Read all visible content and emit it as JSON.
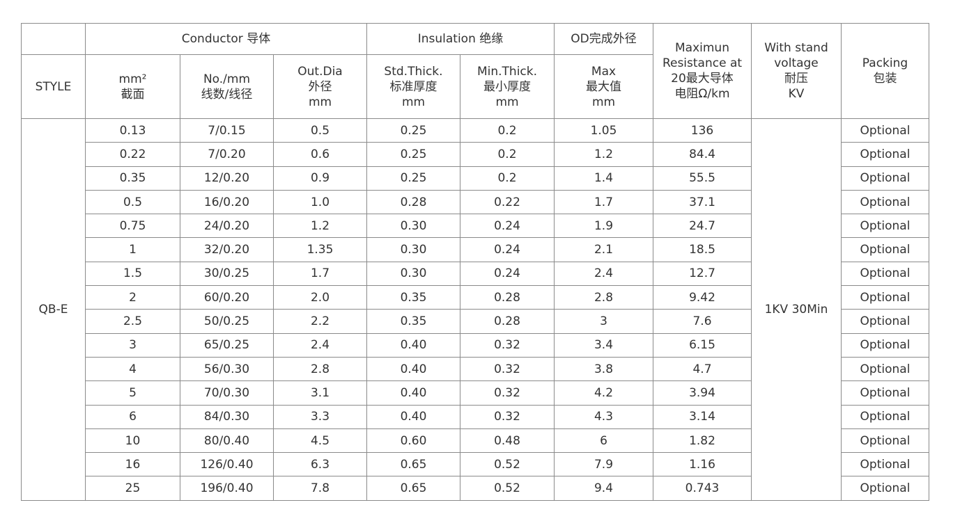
{
  "header": {
    "style": "STYLE",
    "conductor": "Conductor 导体",
    "insulation": "Insulation 绝缘",
    "od": "OD完成外径",
    "resistance": "Maximun\nResistance at\n20最大导体\n电阻Ω/km",
    "voltage": "With stand\nvoltage\n耐压\nKV",
    "packing": "Packing\n包装",
    "area": "mm²\n截面",
    "strands": "No./mm\n线数/线径",
    "outdia": "Out.Dia\n外径\nmm",
    "std_thick": "Std.Thick.\n标准厚度\nmm",
    "min_thick": "Min.Thick.\n最小厚度\nmm",
    "max": "Max\n最大值\nmm"
  },
  "style_value": "QB-E",
  "voltage_value": "1KV 30Min",
  "rows": [
    [
      "0.13",
      "7/0.15",
      "0.5",
      "0.25",
      "0.2",
      "1.05",
      "136",
      "Optional"
    ],
    [
      "0.22",
      "7/0.20",
      "0.6",
      "0.25",
      "0.2",
      "1.2",
      "84.4",
      "Optional"
    ],
    [
      "0.35",
      "12/0.20",
      "0.9",
      "0.25",
      "0.2",
      "1.4",
      "55.5",
      "Optional"
    ],
    [
      "0.5",
      "16/0.20",
      "1.0",
      "0.28",
      "0.22",
      "1.7",
      "37.1",
      "Optional"
    ],
    [
      "0.75",
      "24/0.20",
      "1.2",
      "0.30",
      "0.24",
      "1.9",
      "24.7",
      "Optional"
    ],
    [
      "1",
      "32/0.20",
      "1.35",
      "0.30",
      "0.24",
      "2.1",
      "18.5",
      "Optional"
    ],
    [
      "1.5",
      "30/0.25",
      "1.7",
      "0.30",
      "0.24",
      "2.4",
      "12.7",
      "Optional"
    ],
    [
      "2",
      "60/0.20",
      "2.0",
      "0.35",
      "0.28",
      "2.8",
      "9.42",
      "Optional"
    ],
    [
      "2.5",
      "50/0.25",
      "2.2",
      "0.35",
      "0.28",
      "3",
      "7.6",
      "Optional"
    ],
    [
      "3",
      "65/0.25",
      "2.4",
      "0.40",
      "0.32",
      "3.4",
      "6.15",
      "Optional"
    ],
    [
      "4",
      "56/0.30",
      "2.8",
      "0.40",
      "0.32",
      "3.8",
      "4.7",
      "Optional"
    ],
    [
      "5",
      "70/0.30",
      "3.1",
      "0.40",
      "0.32",
      "4.2",
      "3.94",
      "Optional"
    ],
    [
      "6",
      "84/0.30",
      "3.3",
      "0.40",
      "0.32",
      "4.3",
      "3.14",
      "Optional"
    ],
    [
      "10",
      "80/0.40",
      "4.5",
      "0.60",
      "0.48",
      "6",
      "1.82",
      "Optional"
    ],
    [
      "16",
      "126/0.40",
      "6.3",
      "0.65",
      "0.52",
      "7.9",
      "1.16",
      "Optional"
    ],
    [
      "25",
      "196/0.40",
      "7.8",
      "0.65",
      "0.52",
      "9.4",
      "0.743",
      "Optional"
    ]
  ]
}
